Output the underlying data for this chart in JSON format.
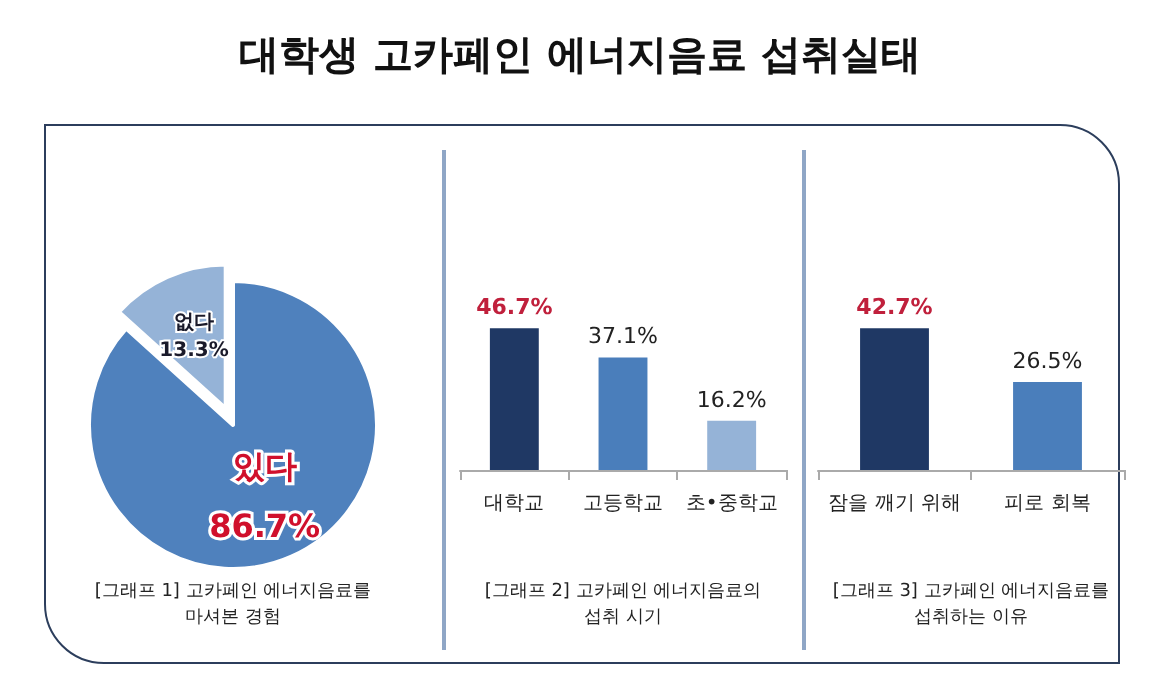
{
  "chart_data": [
    {
      "type": "pie",
      "title": "대학생 고카페인 에너지음료 섭취실태",
      "categories": [
        "있다",
        "없다"
      ],
      "values": [
        86.7,
        13.3
      ],
      "colors": [
        "#4f81bd",
        "#95b3d7"
      ],
      "value_labels": [
        "86.7%",
        "13.3%"
      ],
      "annotations": [
        "[그래프 1] 고카페인 에너지음료를 마셔본 경험"
      ]
    },
    {
      "type": "bar",
      "categories": [
        "대학교",
        "고등학교",
        "초•중학교"
      ],
      "values": [
        46.7,
        37.1,
        16.2
      ],
      "colors": [
        "#1f3864",
        "#4a7ebb",
        "#95b3d7"
      ],
      "value_labels": [
        "46.7%",
        "37.1%",
        "16.2%"
      ],
      "annotations": [
        "[그래프 2] 고카페인 에너지음료의 섭취 시기"
      ]
    },
    {
      "type": "bar",
      "categories": [
        "잠을 깨기 위해",
        "피로 회복"
      ],
      "values": [
        42.7,
        26.5
      ],
      "colors": [
        "#1f3864",
        "#4a7ebb"
      ],
      "value_labels": [
        "42.7%",
        "26.5%"
      ],
      "annotations": [
        "[그래프 3] 고카페인 에너지음료를 섭취하는 이유"
      ]
    }
  ]
}
